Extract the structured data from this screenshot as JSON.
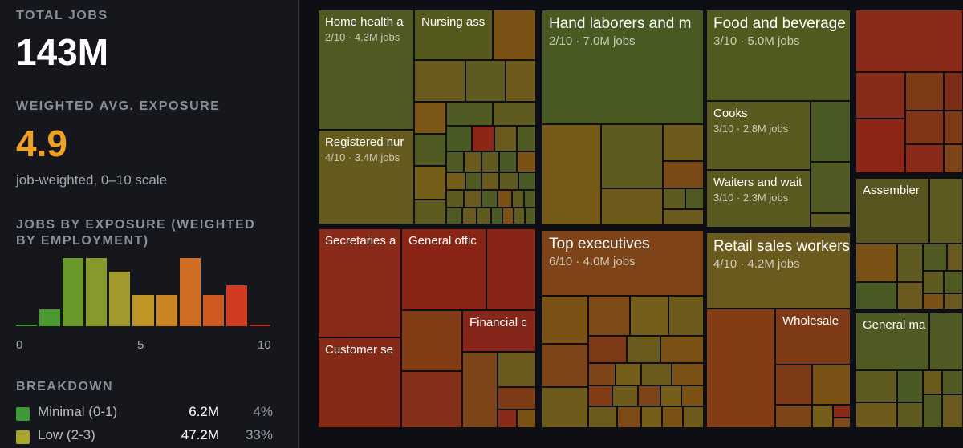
{
  "summary": {
    "total_jobs_label": "TOTAL JOBS",
    "total_jobs_value": "143M",
    "avg_exposure_label": "WEIGHTED AVG. EXPOSURE",
    "avg_exposure_value": "4.9",
    "avg_exposure_note": "job-weighted, 0–10 scale",
    "avg_exposure_color": "#f0a022"
  },
  "histogram": {
    "title_line1": "JOBS BY EXPOSURE (WEIGHTED",
    "title_line2": "BY EMPLOYMENT)",
    "axis_min": "0",
    "axis_mid": "5",
    "axis_max": "10",
    "bins": [
      {
        "score": 0,
        "value": 0.2,
        "color": "#3f9a36"
      },
      {
        "score": 1,
        "value": 3.1,
        "color": "#4a9a30"
      },
      {
        "score": 2,
        "value": 12.3,
        "color": "#6a9a2c"
      },
      {
        "score": 3,
        "value": 12.3,
        "color": "#869a2c"
      },
      {
        "score": 4,
        "value": 9.8,
        "color": "#a19a2c"
      },
      {
        "score": 5,
        "value": 5.6,
        "color": "#bf9526"
      },
      {
        "score": 6,
        "value": 5.6,
        "color": "#c98424"
      },
      {
        "score": 7,
        "value": 12.3,
        "color": "#cf6d22"
      },
      {
        "score": 8,
        "value": 5.6,
        "color": "#cf5a22"
      },
      {
        "score": 9,
        "value": 7.4,
        "color": "#cf3c20"
      },
      {
        "score": 10,
        "value": 0.3,
        "color": "#c9251c"
      }
    ]
  },
  "breakdown": {
    "title": "BREAKDOWN",
    "rows": [
      {
        "name": "Minimal (0-1)",
        "value": "6.2M",
        "pct": "4%",
        "color": "#3f9a36"
      },
      {
        "name": "Low (2-3)",
        "value": "47.2M",
        "pct": "33%",
        "color": "#a7a72e"
      }
    ]
  },
  "treemap": {
    "labeled": [
      {
        "title": "Home health a",
        "sub": "2/10 · 4.3M jobs"
      },
      {
        "title": "Nursing ass",
        "sub": ""
      },
      {
        "title": "Registered nur",
        "sub": "4/10 · 3.4M jobs"
      },
      {
        "title": "Hand laborers and m",
        "sub": "2/10 · 7.0M jobs"
      },
      {
        "title": "Food and beverage s",
        "sub": "3/10 · 5.0M jobs"
      },
      {
        "title": "Cooks",
        "sub": "3/10 · 2.8M jobs"
      },
      {
        "title": "Waiters and wait",
        "sub": "3/10 · 2.3M jobs"
      },
      {
        "title": "Assembler",
        "sub": ""
      },
      {
        "title": "Secretaries a",
        "sub": ""
      },
      {
        "title": "General offic",
        "sub": ""
      },
      {
        "title": "Financial c",
        "sub": ""
      },
      {
        "title": "Customer se",
        "sub": ""
      },
      {
        "title": "Top executives",
        "sub": "6/10 · 4.0M jobs"
      },
      {
        "title": "Retail sales workers",
        "sub": "4/10 · 4.2M jobs"
      },
      {
        "title": "Wholesale",
        "sub": ""
      },
      {
        "title": "General ma",
        "sub": ""
      }
    ]
  }
}
